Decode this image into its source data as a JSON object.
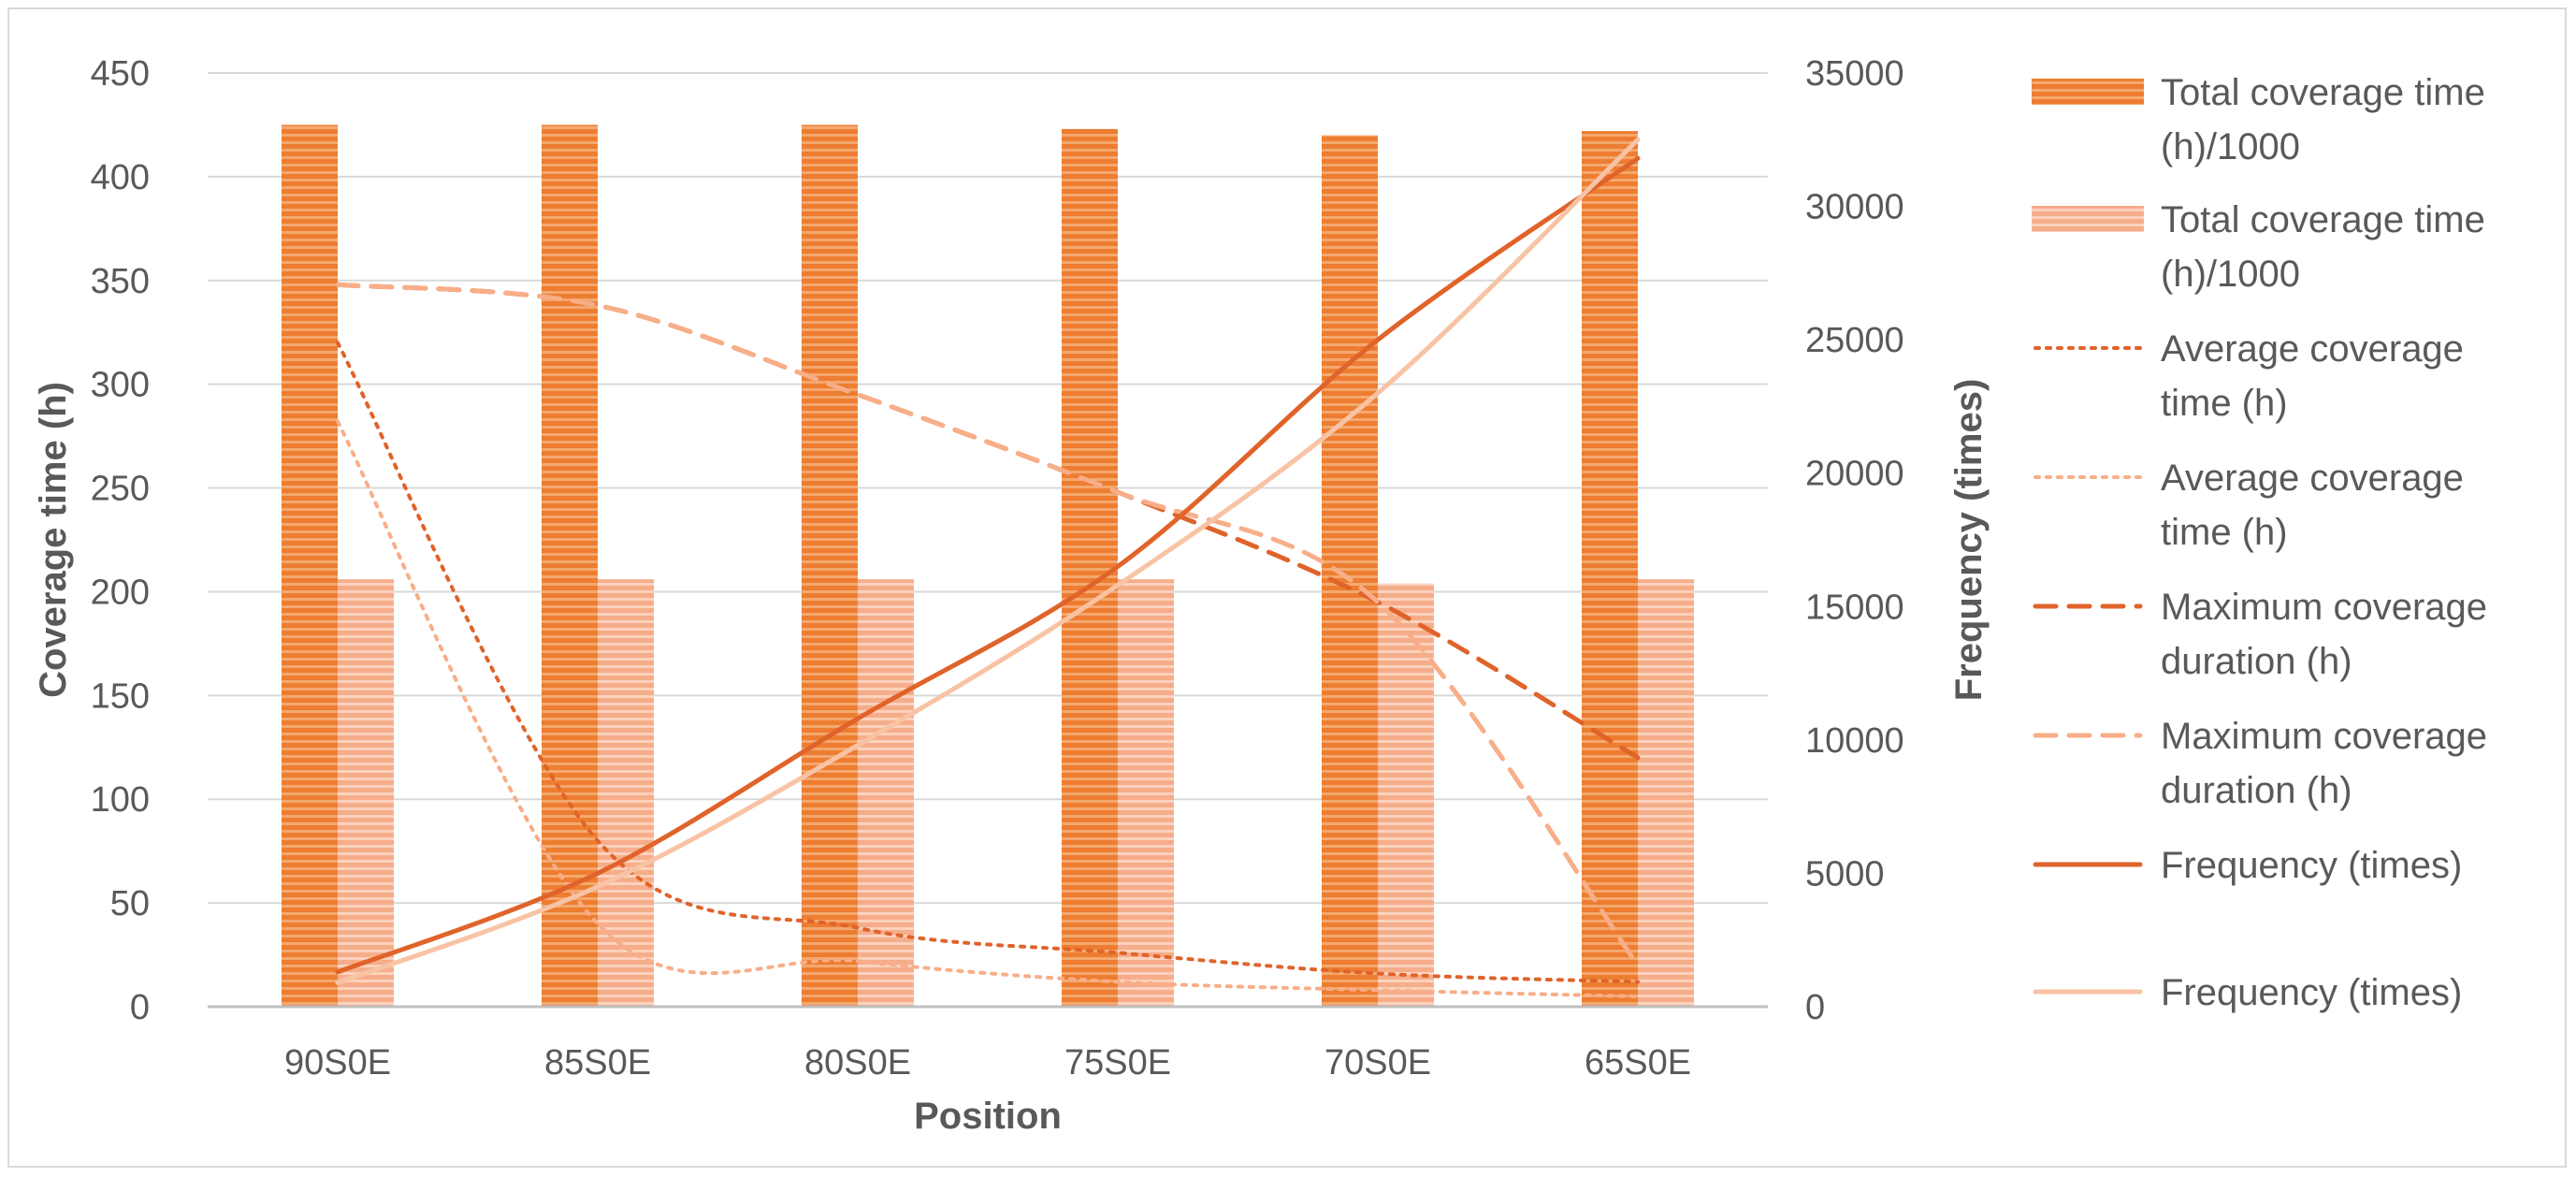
{
  "chart_data": {
    "type": "bar",
    "xlabel": "Position",
    "ylabel": "Coverage time (h)",
    "y2label": "Frequency (times)",
    "categories": [
      "90S0E",
      "85S0E",
      "80S0E",
      "75S0E",
      "70S0E",
      "65S0E"
    ],
    "ylim": [
      0,
      450
    ],
    "y2lim": [
      0,
      35000
    ],
    "yticks": [
      0,
      50,
      100,
      150,
      200,
      250,
      300,
      350,
      400,
      450
    ],
    "y2ticks": [
      0,
      5000,
      10000,
      15000,
      20000,
      25000,
      30000,
      35000
    ],
    "grid": true,
    "legend_position": "right",
    "series": [
      {
        "name": "Total coverage time (h)/1000",
        "kind": "bar",
        "axis": "left",
        "style": "bar-dark",
        "color": "#ed7d31",
        "values": [
          425,
          425,
          425,
          423,
          420,
          422
        ]
      },
      {
        "name": "Total coverage time (h)/1000",
        "kind": "bar",
        "axis": "left",
        "style": "bar-light",
        "color": "#f8b898",
        "values": [
          206,
          206,
          206,
          206,
          204,
          206
        ]
      },
      {
        "name": "Average coverage time (h)",
        "kind": "line",
        "axis": "left",
        "style": "dotted",
        "color": "#e0632a",
        "values": [
          320,
          80,
          38,
          26,
          16,
          12
        ]
      },
      {
        "name": "Average coverage time (h)",
        "kind": "line",
        "axis": "left",
        "style": "dotted",
        "color": "#f8ae88",
        "values": [
          282,
          40,
          22,
          12,
          8,
          5
        ]
      },
      {
        "name": "Maximum coverage duration (h)",
        "kind": "line",
        "axis": "left",
        "style": "dashed",
        "color": "#e0632a",
        "values": [
          348,
          338,
          295,
          248,
          195,
          120
        ]
      },
      {
        "name": "Maximum coverage duration (h)",
        "kind": "line",
        "axis": "left",
        "style": "dashed",
        "color": "#f8ae88",
        "values": [
          348,
          338,
          295,
          248,
          195,
          20
        ]
      },
      {
        "name": "Frequency (times)",
        "kind": "line",
        "axis": "right",
        "style": "solid",
        "color": "#e0632a",
        "values": [
          1300,
          5000,
          10800,
          16500,
          25000,
          31800
        ]
      },
      {
        "name": "Frequency (times)",
        "kind": "line",
        "axis": "right",
        "style": "solid",
        "color": "#f8c3a4",
        "values": [
          900,
          4500,
          9800,
          15800,
          23000,
          32500
        ]
      }
    ]
  }
}
